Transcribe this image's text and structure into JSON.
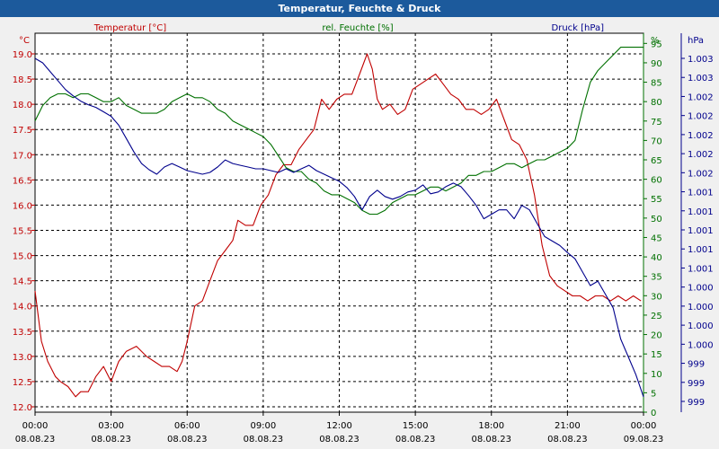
{
  "window": {
    "title": "Temperatur, Feuchte & Druck"
  },
  "colors": {
    "temperature": "#c00000",
    "humidity": "#007000",
    "pressure": "#00008c",
    "titlebar": "#1c5a9c"
  },
  "chart_data": {
    "type": "line",
    "title": "Temperatur, Feuchte & Druck",
    "grid": true,
    "x_ticks": [
      {
        "time": "00:00",
        "date": "08.08.23"
      },
      {
        "time": "03:00",
        "date": "08.08.23"
      },
      {
        "time": "06:00",
        "date": "08.08.23"
      },
      {
        "time": "09:00",
        "date": "08.08.23"
      },
      {
        "time": "12:00",
        "date": "08.08.23"
      },
      {
        "time": "15:00",
        "date": "08.08.23"
      },
      {
        "time": "18:00",
        "date": "08.08.23"
      },
      {
        "time": "21:00",
        "date": "08.08.23"
      },
      {
        "time": "00:00",
        "date": "09.08.23"
      }
    ],
    "x_hours_range": [
      0,
      24
    ],
    "axes": {
      "temperature": {
        "unit": "°C",
        "legend": "Temperatur [°C]",
        "range": [
          12.0,
          19.0
        ],
        "ticks": [
          "12.0",
          "12.5",
          "13.0",
          "13.5",
          "14.0",
          "14.5",
          "15.0",
          "15.5",
          "16.0",
          "16.5",
          "17.0",
          "17.5",
          "18.0",
          "18.5",
          "19.0"
        ]
      },
      "humidity": {
        "unit": "%",
        "legend": "rel. Feuchte [%]",
        "range": [
          0,
          96
        ],
        "ticks": [
          "0",
          "5",
          "10",
          "15",
          "20",
          "25",
          "30",
          "35",
          "40",
          "45",
          "50",
          "55",
          "60",
          "65",
          "70",
          "75",
          "80",
          "85",
          "90",
          "95"
        ]
      },
      "pressure": {
        "unit": "hPa",
        "legend": "Druck [hPa]",
        "ticks": [
          "999",
          "999",
          "999",
          "1.000",
          "1.000",
          "1.000",
          "1.000",
          "1.001",
          "1.001",
          "1.001",
          "1.001",
          "1.001",
          "1.002",
          "1.002",
          "1.002",
          "1.002",
          "1.002",
          "1.003",
          "1.003"
        ]
      }
    },
    "series": [
      {
        "name": "Temperatur [°C]",
        "axis": "temperature",
        "x": [
          0,
          0.25,
          0.5,
          0.8,
          1.0,
          1.3,
          1.6,
          1.8,
          2.1,
          2.4,
          2.7,
          3.0,
          3.3,
          3.6,
          4.0,
          4.4,
          4.7,
          5.0,
          5.3,
          5.6,
          5.8,
          6.0,
          6.3,
          6.6,
          6.9,
          7.2,
          7.5,
          7.8,
          8.0,
          8.3,
          8.6,
          8.9,
          9.2,
          9.5,
          9.8,
          10.1,
          10.4,
          10.7,
          11.0,
          11.3,
          11.6,
          11.9,
          12.2,
          12.5,
          12.8,
          13.1,
          13.3,
          13.5,
          13.7,
          14.0,
          14.3,
          14.6,
          14.9,
          15.2,
          15.5,
          15.8,
          16.1,
          16.4,
          16.7,
          17.0,
          17.3,
          17.6,
          17.9,
          18.2,
          18.5,
          18.8,
          19.1,
          19.4,
          19.7,
          20.0,
          20.3,
          20.6,
          20.9,
          21.2,
          21.5,
          21.8,
          22.1,
          22.4,
          22.7,
          23.0,
          23.3,
          23.6,
          23.9
        ],
        "y": [
          14.3,
          13.3,
          12.9,
          12.6,
          12.5,
          12.4,
          12.2,
          12.3,
          12.3,
          12.6,
          12.8,
          12.5,
          12.9,
          13.1,
          13.2,
          13.0,
          12.9,
          12.8,
          12.8,
          12.7,
          12.9,
          13.3,
          14.0,
          14.1,
          14.5,
          14.9,
          15.1,
          15.3,
          15.7,
          15.6,
          15.6,
          16.0,
          16.2,
          16.6,
          16.8,
          16.8,
          17.1,
          17.3,
          17.5,
          18.1,
          17.9,
          18.1,
          18.2,
          18.2,
          18.6,
          19.0,
          18.7,
          18.1,
          17.9,
          18.0,
          17.8,
          17.9,
          18.3,
          18.4,
          18.5,
          18.6,
          18.4,
          18.2,
          18.1,
          17.9,
          17.9,
          17.8,
          17.9,
          18.1,
          17.7,
          17.3,
          17.2,
          16.9,
          16.2,
          15.2,
          14.6,
          14.4,
          14.3,
          14.2,
          14.2,
          14.1,
          14.2,
          14.2,
          14.1,
          14.2,
          14.1,
          14.2,
          14.1
        ]
      },
      {
        "name": "rel. Feuchte [%]",
        "axis": "humidity",
        "x": [
          0,
          0.3,
          0.6,
          0.9,
          1.2,
          1.5,
          1.8,
          2.1,
          2.4,
          2.7,
          3.0,
          3.3,
          3.6,
          3.9,
          4.2,
          4.5,
          4.8,
          5.1,
          5.4,
          5.7,
          6.0,
          6.3,
          6.6,
          6.9,
          7.2,
          7.5,
          7.8,
          8.1,
          8.4,
          8.7,
          9.0,
          9.3,
          9.6,
          9.9,
          10.2,
          10.5,
          10.8,
          11.1,
          11.4,
          11.7,
          12.0,
          12.3,
          12.6,
          12.9,
          13.2,
          13.5,
          13.8,
          14.1,
          14.4,
          14.7,
          15.0,
          15.3,
          15.6,
          15.9,
          16.2,
          16.5,
          16.8,
          17.1,
          17.4,
          17.7,
          18.0,
          18.3,
          18.6,
          18.9,
          19.2,
          19.5,
          19.8,
          20.1,
          20.4,
          20.7,
          21.0,
          21.3,
          21.6,
          21.9,
          22.2,
          22.5,
          22.8,
          23.1,
          23.4,
          23.7,
          24.0
        ],
        "y": [
          75,
          79,
          81,
          82,
          82,
          81,
          82,
          82,
          81,
          80,
          80,
          81,
          79,
          78,
          77,
          77,
          77,
          78,
          80,
          81,
          82,
          81,
          81,
          80,
          78,
          77,
          75,
          74,
          73,
          72,
          71,
          69,
          66,
          63,
          62,
          62,
          60,
          59,
          57,
          56,
          56,
          55,
          54,
          52,
          51,
          51,
          52,
          54,
          55,
          56,
          56,
          57,
          58,
          58,
          57,
          58,
          59,
          61,
          61,
          62,
          62,
          63,
          64,
          64,
          63,
          64,
          65,
          65,
          66,
          67,
          68,
          70,
          78,
          85,
          88,
          90,
          92,
          94,
          94,
          94,
          94
        ]
      },
      {
        "name": "Druck [hPa]",
        "axis": "pressure",
        "x": [
          0,
          0.3,
          0.6,
          0.9,
          1.2,
          1.5,
          1.8,
          2.1,
          2.4,
          2.7,
          3.0,
          3.3,
          3.6,
          3.9,
          4.2,
          4.5,
          4.8,
          5.1,
          5.4,
          5.7,
          6.0,
          6.3,
          6.6,
          6.9,
          7.2,
          7.5,
          7.8,
          8.1,
          8.4,
          8.7,
          9.0,
          9.3,
          9.6,
          9.9,
          10.2,
          10.5,
          10.8,
          11.1,
          11.4,
          11.7,
          12.0,
          12.3,
          12.6,
          12.9,
          13.2,
          13.5,
          13.8,
          14.1,
          14.4,
          14.7,
          15.0,
          15.3,
          15.6,
          15.9,
          16.2,
          16.5,
          16.8,
          17.1,
          17.4,
          17.7,
          18.0,
          18.3,
          18.6,
          18.9,
          19.2,
          19.5,
          19.8,
          20.1,
          20.4,
          20.7,
          21.0,
          21.3,
          21.6,
          21.9,
          22.2,
          22.5,
          22.8,
          23.1,
          23.4,
          23.7,
          24.0
        ],
        "y": [
          1003.1,
          1003.05,
          1002.95,
          1002.85,
          1002.75,
          1002.68,
          1002.62,
          1002.58,
          1002.55,
          1002.5,
          1002.45,
          1002.35,
          1002.2,
          1002.05,
          1001.92,
          1001.85,
          1001.8,
          1001.88,
          1001.92,
          1001.88,
          1001.84,
          1001.82,
          1001.8,
          1001.82,
          1001.88,
          1001.96,
          1001.92,
          1001.9,
          1001.88,
          1001.86,
          1001.86,
          1001.84,
          1001.82,
          1001.86,
          1001.82,
          1001.86,
          1001.9,
          1001.84,
          1001.8,
          1001.76,
          1001.72,
          1001.65,
          1001.55,
          1001.4,
          1001.55,
          1001.62,
          1001.55,
          1001.52,
          1001.55,
          1001.6,
          1001.62,
          1001.68,
          1001.58,
          1001.6,
          1001.66,
          1001.7,
          1001.66,
          1001.56,
          1001.45,
          1001.3,
          1001.35,
          1001.4,
          1001.4,
          1001.3,
          1001.45,
          1001.4,
          1001.25,
          1001.1,
          1001.05,
          1001.0,
          1000.92,
          1000.85,
          1000.7,
          1000.55,
          1000.6,
          1000.45,
          1000.3,
          999.95,
          999.75,
          999.55,
          999.3
        ]
      }
    ]
  }
}
